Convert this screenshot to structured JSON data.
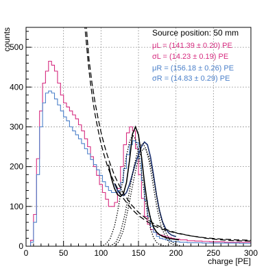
{
  "chart_data": {
    "type": "line",
    "xlabel": "charge [PE]",
    "ylabel": "counts",
    "xlim": [
      0,
      300
    ],
    "ylim": [
      0,
      550
    ],
    "xticks": [
      0,
      50,
      100,
      150,
      200,
      250,
      300
    ],
    "yticks": [
      0,
      100,
      200,
      300,
      400,
      500
    ],
    "grid": true,
    "legend": {
      "placement": "top-right",
      "header": "Source position: 50 mm",
      "entries": [
        {
          "text": "μL = (141.39 ± 0.20) PE",
          "color": "#d6297e"
        },
        {
          "text": "σL = (14.23 ± 0.19) PE",
          "color": "#d6297e"
        },
        {
          "text": "μR = (156.18 ± 0.26) PE",
          "color": "#4a7fc9"
        },
        {
          "text": "σR = (14.83 ± 0.29) PE",
          "color": "#4a7fc9"
        }
      ]
    },
    "series": [
      {
        "color": "#d6297e",
        "style": "histogram",
        "x": [
          4,
          8,
          12,
          16,
          20,
          24,
          28,
          32,
          36,
          40,
          44,
          48,
          52,
          56,
          60,
          64,
          68,
          72,
          76,
          80,
          84,
          88,
          92,
          96,
          100,
          104,
          108,
          112,
          116,
          120,
          124,
          128,
          132,
          136,
          140,
          144,
          148,
          152,
          156,
          160,
          164,
          168,
          172,
          176,
          180,
          184,
          188,
          192,
          196,
          200,
          210,
          220,
          230,
          240,
          250,
          260,
          270,
          280,
          290,
          300
        ],
        "values": [
          0,
          15,
          80,
          220,
          340,
          410,
          440,
          465,
          455,
          440,
          410,
          380,
          360,
          350,
          340,
          330,
          320,
          305,
          290,
          270,
          250,
          225,
          200,
          178,
          155,
          135,
          118,
          100,
          100,
          110,
          145,
          200,
          255,
          285,
          300,
          290,
          245,
          180,
          120,
          75,
          55,
          42,
          35,
          30,
          28,
          26,
          24,
          22,
          20,
          18,
          16,
          14,
          13,
          12,
          11,
          11,
          10,
          10,
          10,
          10
        ]
      },
      {
        "color": "#4a7fc9",
        "style": "histogram",
        "x": [
          4,
          8,
          12,
          16,
          20,
          24,
          28,
          32,
          36,
          40,
          44,
          48,
          52,
          56,
          60,
          64,
          68,
          72,
          76,
          80,
          84,
          88,
          92,
          96,
          100,
          104,
          108,
          112,
          116,
          120,
          124,
          128,
          132,
          136,
          140,
          144,
          148,
          152,
          156,
          160,
          164,
          168,
          172,
          176,
          180,
          184,
          188,
          192,
          196,
          200,
          210,
          220,
          230,
          240,
          250,
          260,
          270,
          280,
          290,
          300
        ],
        "values": [
          0,
          10,
          60,
          180,
          300,
          360,
          385,
          390,
          385,
          370,
          355,
          340,
          325,
          315,
          300,
          290,
          280,
          270,
          258,
          245,
          232,
          218,
          205,
          192,
          178,
          162,
          150,
          140,
          135,
          135,
          140,
          160,
          195,
          230,
          255,
          265,
          260,
          220,
          165,
          115,
          75,
          50,
          35,
          25,
          20,
          18,
          16,
          14,
          12,
          11,
          10,
          9,
          9,
          8,
          8,
          8,
          8,
          8,
          7,
          7
        ]
      },
      {
        "color": "#1a2f6e",
        "style": "fit-solid",
        "x": [
          118,
          122,
          126,
          130,
          134,
          138,
          142,
          146,
          150,
          154,
          158,
          162,
          166,
          170,
          174,
          178,
          182,
          186,
          190,
          194,
          200
        ],
        "values": [
          158,
          140,
          130,
          127,
          135,
          155,
          182,
          208,
          230,
          250,
          262,
          255,
          225,
          180,
          130,
          90,
          62,
          45,
          34,
          28,
          24
        ]
      },
      {
        "color": "#000000",
        "style": "fit-solid",
        "x": [
          110,
          114,
          118,
          122,
          126,
          130,
          134,
          138,
          142,
          146,
          150,
          154,
          158,
          162,
          166,
          170,
          174,
          178,
          182,
          186,
          190,
          196,
          204
        ],
        "values": [
          205,
          170,
          145,
          130,
          125,
          132,
          160,
          215,
          282,
          300,
          280,
          225,
          160,
          105,
          70,
          48,
          36,
          29,
          25,
          22,
          20,
          18,
          16
        ]
      },
      {
        "color": "#000000",
        "style": "dashed",
        "x": [
          78,
          80,
          82,
          84,
          86,
          88,
          90,
          92,
          94,
          96,
          100,
          104,
          108,
          112,
          118,
          124,
          130,
          140,
          150,
          160,
          170,
          180,
          190,
          200,
          220,
          240,
          260,
          280,
          300
        ],
        "values": [
          560,
          520,
          478,
          442,
          410,
          382,
          355,
          332,
          312,
          293,
          258,
          230,
          205,
          184,
          160,
          138,
          120,
          95,
          77,
          64,
          52,
          44,
          38,
          33,
          26,
          21,
          18,
          16,
          15
        ]
      },
      {
        "color": "#000000",
        "style": "dashed",
        "x": [
          80,
          84,
          88,
          92,
          96,
          100,
          104,
          108,
          112,
          118,
          124,
          130,
          140,
          150,
          160,
          170,
          180,
          190,
          200,
          220,
          240,
          260,
          280,
          300
        ],
        "values": [
          560,
          470,
          410,
          362,
          322,
          287,
          257,
          231,
          208,
          178,
          154,
          133,
          105,
          85,
          70,
          57,
          48,
          40,
          34,
          26,
          20,
          16,
          14,
          13
        ]
      },
      {
        "color": "#000000",
        "style": "dotted",
        "x": [
          100,
          106,
          112,
          118,
          122,
          126,
          130,
          134,
          138,
          142,
          146,
          150,
          154,
          158,
          162,
          166,
          170,
          174,
          178,
          184,
          190
        ],
        "values": [
          0,
          5,
          18,
          50,
          85,
          130,
          180,
          228,
          262,
          280,
          270,
          235,
          185,
          130,
          82,
          45,
          22,
          10,
          4,
          1,
          0
        ]
      },
      {
        "color": "#000000",
        "style": "dotted",
        "x": [
          112,
          120,
          126,
          132,
          136,
          140,
          144,
          148,
          152,
          156,
          160,
          164,
          168,
          172,
          176,
          180,
          186,
          192,
          200
        ],
        "values": [
          0,
          10,
          35,
          80,
          118,
          160,
          200,
          232,
          252,
          258,
          245,
          215,
          172,
          125,
          85,
          52,
          22,
          8,
          0
        ]
      },
      {
        "color": "#000000",
        "style": "dotted",
        "x": [
          118,
          124,
          130,
          136,
          140,
          144,
          148,
          152,
          156,
          160,
          164,
          168,
          172,
          176,
          180,
          186,
          192,
          200,
          208
        ],
        "values": [
          0,
          12,
          40,
          92,
          132,
          170,
          205,
          230,
          245,
          243,
          225,
          192,
          150,
          108,
          72,
          36,
          15,
          4,
          0
        ]
      }
    ]
  }
}
